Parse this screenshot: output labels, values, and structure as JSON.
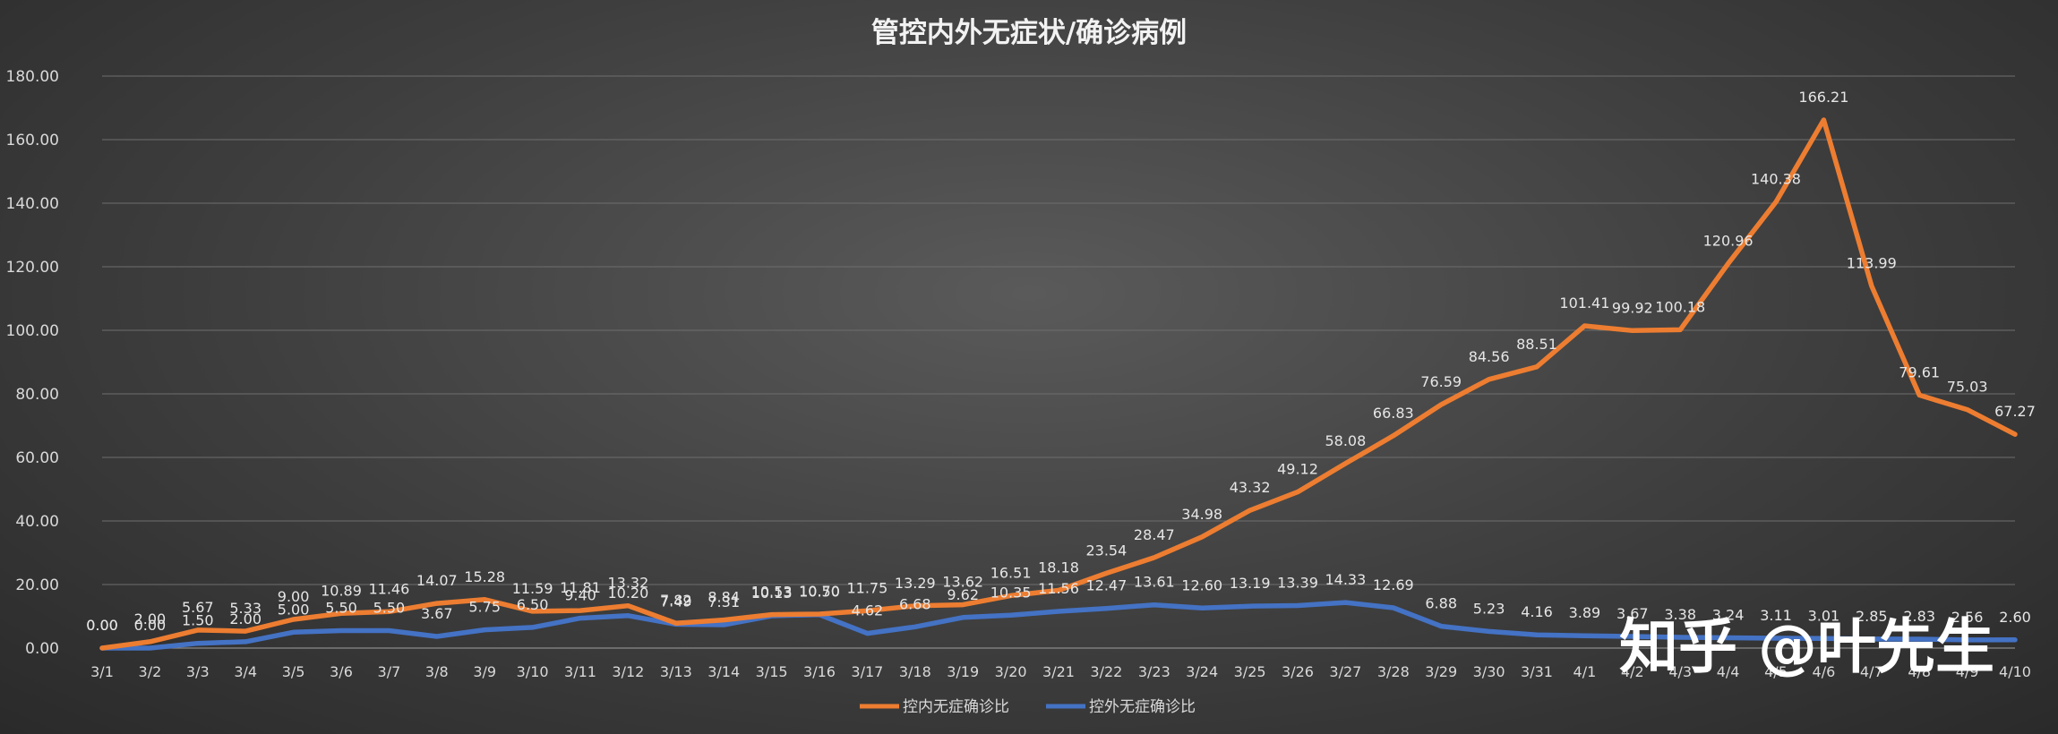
{
  "chart_data": {
    "type": "line",
    "title": "管控内外无症状/确诊病例",
    "xlabel": "",
    "ylabel": "",
    "ylim": [
      0,
      180
    ],
    "yticks": [
      "0.00",
      "20.00",
      "40.00",
      "60.00",
      "80.00",
      "100.00",
      "120.00",
      "140.00",
      "160.00",
      "180.00"
    ],
    "grid": true,
    "legend_position": "bottom",
    "categories": [
      "3/1",
      "3/2",
      "3/3",
      "3/4",
      "3/5",
      "3/6",
      "3/7",
      "3/8",
      "3/9",
      "3/10",
      "3/11",
      "3/12",
      "3/13",
      "3/14",
      "3/15",
      "3/16",
      "3/17",
      "3/18",
      "3/19",
      "3/20",
      "3/21",
      "3/22",
      "3/23",
      "3/24",
      "3/25",
      "3/26",
      "3/27",
      "3/28",
      "3/29",
      "3/30",
      "3/31",
      "4/1",
      "4/2",
      "4/3",
      "4/4",
      "4/5",
      "4/6",
      "4/7",
      "4/8",
      "4/9",
      "4/10"
    ],
    "series": [
      {
        "name": "控内无症确诊比",
        "color": "#ed7d31",
        "values": [
          0.0,
          2.0,
          5.67,
          5.33,
          9.0,
          10.89,
          11.46,
          14.07,
          15.28,
          11.59,
          11.81,
          13.32,
          7.82,
          8.84,
          10.53,
          10.7,
          11.75,
          13.29,
          13.62,
          16.51,
          18.18,
          23.54,
          28.47,
          34.98,
          43.32,
          49.12,
          58.08,
          66.83,
          76.59,
          84.56,
          88.51,
          101.41,
          99.92,
          100.18,
          120.96,
          140.38,
          166.21,
          113.99,
          79.61,
          75.03,
          67.27
        ],
        "labels": [
          "0.00",
          "2.00",
          "5.67",
          "5.33",
          "9.00",
          "10.89",
          "11.46",
          "14.07",
          "15.28",
          "11.59",
          "11.81",
          "13.32",
          "7.82",
          "8.84",
          "10.53",
          "10.70",
          "11.75",
          "13.29",
          "13.62",
          "16.51",
          "18.18",
          "23.54",
          "28.47",
          "34.98",
          "43.32",
          "49.12",
          "58.08",
          "66.83",
          "76.59",
          "84.56",
          "88.51",
          "101.41",
          "99.92",
          "100.18",
          "120.96",
          "140.38",
          "166.21",
          "113.99",
          "79.61",
          "75.03",
          "67.27"
        ]
      },
      {
        "name": "控外无症确诊比",
        "color": "#4472c4",
        "values": [
          0.0,
          0.0,
          1.5,
          2.0,
          5.0,
          5.5,
          5.5,
          3.67,
          5.75,
          6.5,
          9.4,
          10.2,
          7.49,
          7.31,
          10.13,
          10.5,
          4.62,
          6.68,
          9.62,
          10.35,
          11.56,
          12.47,
          13.61,
          12.6,
          13.19,
          13.39,
          14.33,
          12.69,
          6.88,
          5.23,
          4.16,
          3.89,
          3.67,
          3.38,
          3.24,
          3.11,
          3.01,
          2.85,
          2.83,
          2.56,
          2.6
        ],
        "labels": [
          "0.00",
          "0.00",
          "1.50",
          "2.00",
          "5.00",
          "5.50",
          "5.50",
          "3.67",
          "5.75",
          "6.50",
          "9.40",
          "10.20",
          "7.49",
          "7.31",
          "10.13",
          "10.50",
          "4.62",
          "6.68",
          "9.62",
          "10.35",
          "11.56",
          "12.47",
          "13.61",
          "12.60",
          "13.19",
          "13.39",
          "14.33",
          "12.69",
          "6.88",
          "5.23",
          "4.16",
          "3.89",
          "3.67",
          "3.38",
          "3.24",
          "3.11",
          "3.01",
          "2.85",
          "2.83",
          "2.56",
          "2.60"
        ]
      }
    ]
  },
  "watermark": "知乎 @叶先生"
}
